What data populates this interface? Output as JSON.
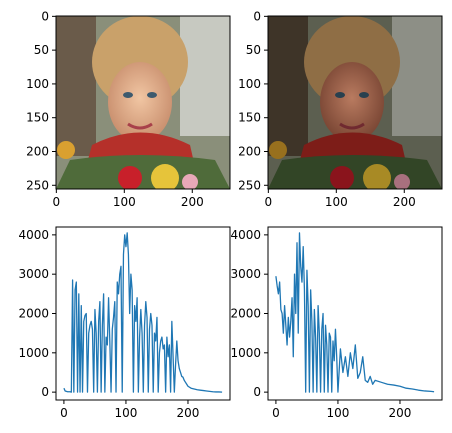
{
  "figure": {
    "background": "#ffffff",
    "series_color": "#1f77b4"
  },
  "chart_data": [
    {
      "type": "image",
      "x_ticks": [
        0,
        100,
        200
      ],
      "y_ticks": [
        0,
        50,
        100,
        150,
        200,
        250
      ],
      "xlim": [
        -0.5,
        255.5
      ],
      "ylim": [
        255.5,
        -0.5
      ],
      "image_description_icon": "portrait-photo",
      "tone": "original"
    },
    {
      "type": "image",
      "x_ticks": [
        0,
        100,
        200
      ],
      "y_ticks": [
        0,
        50,
        100,
        150,
        200,
        250
      ],
      "xlim": [
        -0.5,
        255.5
      ],
      "ylim": [
        255.5,
        -0.5
      ],
      "image_description_icon": "portrait-photo",
      "tone": "darkened"
    },
    {
      "type": "line",
      "x_ticks": [
        0,
        100,
        200
      ],
      "y_ticks": [
        0,
        1000,
        2000,
        3000,
        4000
      ],
      "xlim": [
        -12.75,
        267.75
      ],
      "ylim": [
        -200,
        4200
      ],
      "series": [
        {
          "x": [
            0,
            2,
            4,
            6,
            8,
            10,
            12,
            14,
            16,
            18,
            20,
            22,
            24,
            26,
            28,
            30,
            32,
            34,
            36,
            38,
            40,
            42,
            44,
            46,
            48,
            50,
            52,
            54,
            56,
            58,
            60,
            62,
            64,
            66,
            68,
            70,
            72,
            74,
            76,
            78,
            80,
            82,
            84,
            86,
            88,
            90,
            92,
            94,
            96,
            98,
            100,
            102,
            104,
            106,
            108,
            110,
            112,
            114,
            116,
            118,
            120,
            122,
            124,
            126,
            128,
            130,
            132,
            134,
            136,
            138,
            140,
            142,
            144,
            146,
            148,
            150,
            152,
            154,
            156,
            158,
            160,
            162,
            164,
            166,
            168,
            170,
            172,
            174,
            176,
            178,
            180,
            182,
            184,
            186,
            188,
            190,
            192,
            194,
            196,
            198,
            200,
            205,
            210,
            215,
            220,
            225,
            230,
            235,
            240,
            245,
            250,
            255
          ],
          "y": [
            100,
            30,
            20,
            10,
            10,
            10,
            0,
            2850,
            0,
            2600,
            2800,
            0,
            2500,
            0,
            2200,
            0,
            1800,
            1950,
            2000,
            0,
            1500,
            1700,
            1800,
            1600,
            0,
            2100,
            1500,
            0,
            1800,
            2300,
            0,
            1700,
            2500,
            0,
            1400,
            1200,
            2400,
            1300,
            0,
            1600,
            1900,
            2300,
            0,
            2800,
            2500,
            3000,
            3200,
            0,
            3500,
            4000,
            3700,
            4050,
            3500,
            2000,
            3000,
            2600,
            0,
            2200,
            1800,
            2400,
            0,
            1400,
            2100,
            1500,
            0,
            1700,
            2300,
            1900,
            0,
            1600,
            2000,
            1700,
            0,
            1500,
            1300,
            1900,
            0,
            1000,
            1300,
            1400,
            1100,
            1200,
            0,
            1400,
            900,
            1200,
            0,
            1800,
            900,
            0,
            700,
            1300,
            800,
            600,
            500,
            400,
            380,
            300,
            250,
            200,
            150,
            100,
            80,
            60,
            50,
            40,
            30,
            20,
            10,
            5,
            5,
            0
          ]
        }
      ]
    },
    {
      "type": "line",
      "x_ticks": [
        0,
        100,
        200
      ],
      "y_ticks": [
        0,
        1000,
        2000,
        3000,
        4000
      ],
      "xlim": [
        -12.75,
        267.75
      ],
      "ylim": [
        -200,
        4200
      ],
      "series": [
        {
          "x": [
            0,
            2,
            4,
            6,
            8,
            10,
            12,
            14,
            16,
            18,
            20,
            22,
            24,
            26,
            28,
            30,
            32,
            34,
            36,
            38,
            40,
            42,
            44,
            46,
            48,
            50,
            52,
            54,
            56,
            58,
            60,
            62,
            64,
            66,
            68,
            70,
            72,
            74,
            76,
            78,
            80,
            82,
            84,
            86,
            88,
            90,
            92,
            94,
            96,
            98,
            100,
            104,
            108,
            112,
            116,
            120,
            124,
            128,
            132,
            136,
            140,
            144,
            148,
            152,
            156,
            160,
            170,
            180,
            190,
            200,
            210,
            220,
            230,
            240,
            250,
            255
          ],
          "y": [
            2950,
            2700,
            2500,
            2800,
            2100,
            2000,
            1500,
            2200,
            1700,
            1200,
            1900,
            1400,
            1800,
            2400,
            900,
            3000,
            2000,
            3800,
            1500,
            4050,
            3200,
            2800,
            3700,
            2600,
            0,
            3100,
            2200,
            0,
            2600,
            1800,
            0,
            2100,
            1400,
            0,
            2200,
            1500,
            0,
            1600,
            2000,
            0,
            1700,
            1200,
            0,
            1500,
            1400,
            0,
            1300,
            800,
            1600,
            900,
            0,
            1100,
            500,
            900,
            400,
            1000,
            600,
            1200,
            350,
            500,
            900,
            300,
            250,
            400,
            200,
            300,
            250,
            200,
            180,
            150,
            100,
            80,
            50,
            30,
            20,
            10
          ]
        }
      ]
    }
  ]
}
